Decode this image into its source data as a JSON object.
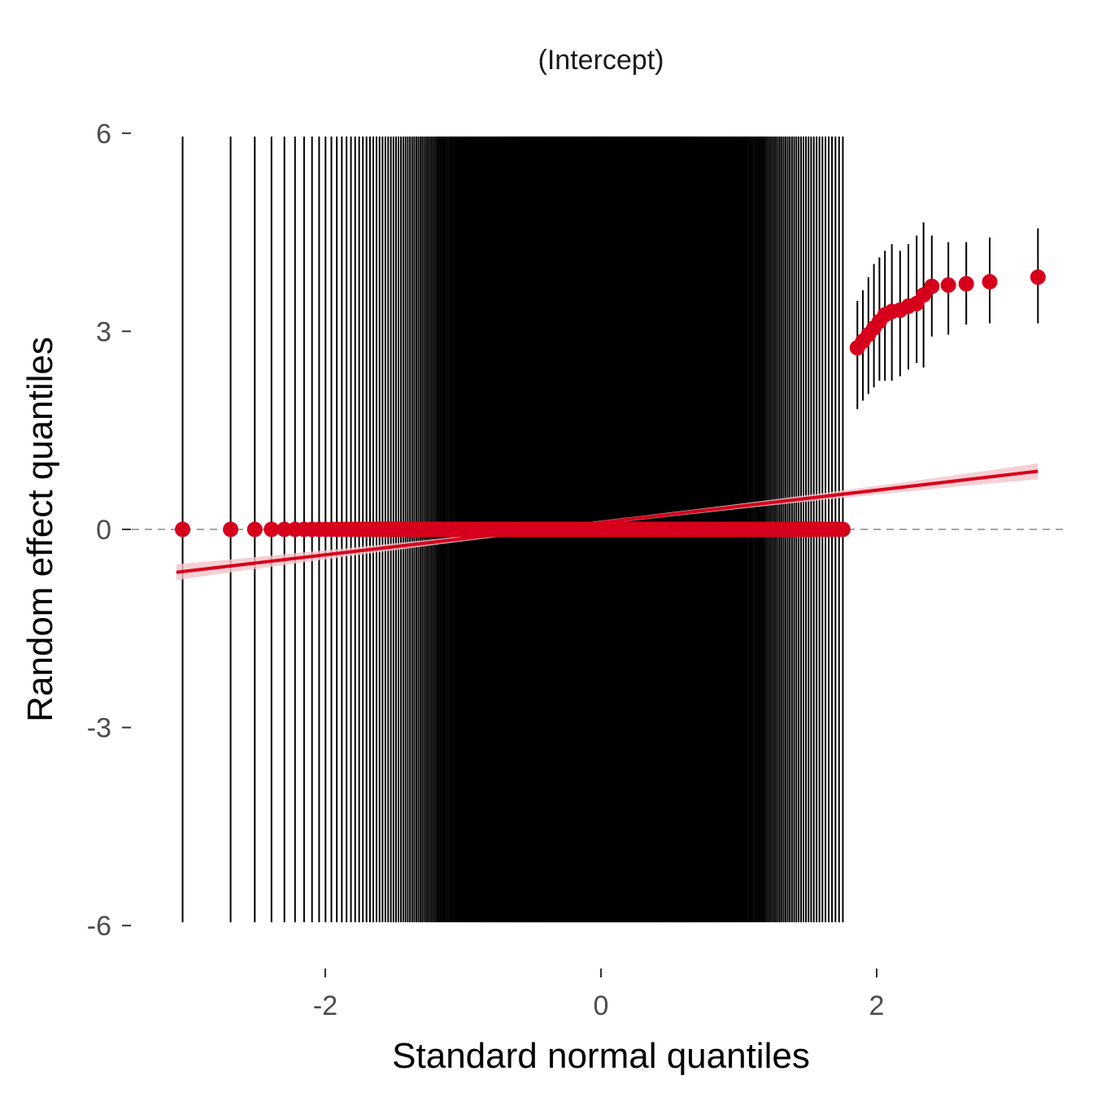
{
  "chart_data": {
    "type": "scatter",
    "title": "(Intercept)",
    "xlabel": "Standard normal quantiles",
    "ylabel": "Random effect quantiles",
    "xlim": [
      -3.5,
      3.6
    ],
    "ylim": [
      -6.5,
      6.3
    ],
    "x_ticks": [
      -2,
      0,
      2
    ],
    "x_tick_labels": [
      "-2",
      "0",
      "2"
    ],
    "y_ticks": [
      6,
      3,
      0,
      -3,
      -6
    ],
    "y_tick_labels": [
      "6",
      "3",
      "0",
      "-3",
      "-6"
    ],
    "grid": false,
    "reference_line_y": 0,
    "colors": {
      "points": "#d7001c",
      "fit_line": "#d7001c",
      "fit_band": "#f4c3c9",
      "error_bars": "#000000",
      "reference_line": "#a6a6a6"
    },
    "zero_group": {
      "count": 400,
      "x_min": -3.08,
      "x_max": 1.85,
      "y": 0,
      "lower": -5.95,
      "upper": 5.95
    },
    "upper_points": [
      {
        "x": 1.86,
        "y": 2.75,
        "lower": 1.82,
        "upper": 3.46
      },
      {
        "x": 1.9,
        "y": 2.85,
        "lower": 1.95,
        "upper": 3.62
      },
      {
        "x": 1.94,
        "y": 2.95,
        "lower": 2.05,
        "upper": 3.82
      },
      {
        "x": 1.98,
        "y": 3.05,
        "lower": 2.15,
        "upper": 4.02
      },
      {
        "x": 2.02,
        "y": 3.15,
        "lower": 2.25,
        "upper": 4.12
      },
      {
        "x": 2.06,
        "y": 3.25,
        "lower": 2.25,
        "upper": 4.22
      },
      {
        "x": 2.11,
        "y": 3.3,
        "lower": 2.25,
        "upper": 4.32
      },
      {
        "x": 2.17,
        "y": 3.32,
        "lower": 2.32,
        "upper": 4.22
      },
      {
        "x": 2.23,
        "y": 3.38,
        "lower": 2.42,
        "upper": 4.32
      },
      {
        "x": 2.29,
        "y": 3.42,
        "lower": 2.52,
        "upper": 4.45
      },
      {
        "x": 2.34,
        "y": 3.55,
        "lower": 2.45,
        "upper": 4.65
      },
      {
        "x": 2.4,
        "y": 3.68,
        "lower": 2.92,
        "upper": 4.45
      },
      {
        "x": 2.52,
        "y": 3.7,
        "lower": 2.95,
        "upper": 4.35
      },
      {
        "x": 2.65,
        "y": 3.72,
        "lower": 3.1,
        "upper": 4.35
      },
      {
        "x": 2.82,
        "y": 3.75,
        "lower": 3.12,
        "upper": 4.42
      },
      {
        "x": 3.17,
        "y": 3.82,
        "lower": 3.12,
        "upper": 4.56
      }
    ],
    "fit_line": {
      "x": [
        -3.08,
        3.17
      ],
      "y": [
        -0.65,
        0.88
      ],
      "band_half_width_ends": 0.12,
      "band_half_width_center": 0.03
    }
  }
}
